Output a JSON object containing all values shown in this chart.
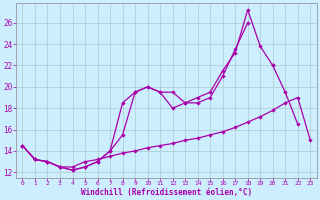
{
  "xlabel": "Windchill (Refroidissement éolien,°C)",
  "background_color": "#cceeff",
  "grid_color": "#aacccc",
  "line_color": "#aa00aa",
  "x_ticks": [
    0,
    1,
    2,
    3,
    4,
    5,
    6,
    7,
    8,
    9,
    10,
    11,
    12,
    13,
    14,
    15,
    16,
    17,
    18,
    19,
    20,
    21,
    22,
    23
  ],
  "y_ticks": [
    12,
    14,
    16,
    18,
    20,
    22,
    24,
    26
  ],
  "ylim": [
    11.5,
    27.8
  ],
  "xlim": [
    -0.5,
    23.5
  ],
  "series1_y": [
    14.5,
    13.2,
    13.0,
    12.5,
    12.2,
    12.5,
    13.0,
    14.0,
    15.5,
    19.5,
    20.0,
    19.5,
    19.5,
    18.5,
    18.5,
    19.0,
    21.0,
    23.5,
    26.0,
    null,
    null,
    null,
    null,
    null
  ],
  "series2_y": [
    14.5,
    13.2,
    13.0,
    12.5,
    12.2,
    12.5,
    13.0,
    14.0,
    18.5,
    19.5,
    20.0,
    19.5,
    18.0,
    18.5,
    19.0,
    19.5,
    21.5,
    23.2,
    27.2,
    23.8,
    22.0,
    null,
    null,
    null
  ],
  "series3_y": [
    14.5,
    13.2,
    13.0,
    12.5,
    12.5,
    13.0,
    13.2,
    13.5,
    13.8,
    14.0,
    14.3,
    14.5,
    14.7,
    15.0,
    15.2,
    15.5,
    15.8,
    16.2,
    16.7,
    17.2,
    17.8,
    18.5,
    19.0,
    15.0
  ],
  "series4_y": [
    null,
    null,
    null,
    null,
    null,
    null,
    null,
    null,
    null,
    null,
    null,
    null,
    null,
    null,
    null,
    null,
    null,
    null,
    null,
    null,
    22.0,
    19.5,
    16.5,
    null
  ]
}
